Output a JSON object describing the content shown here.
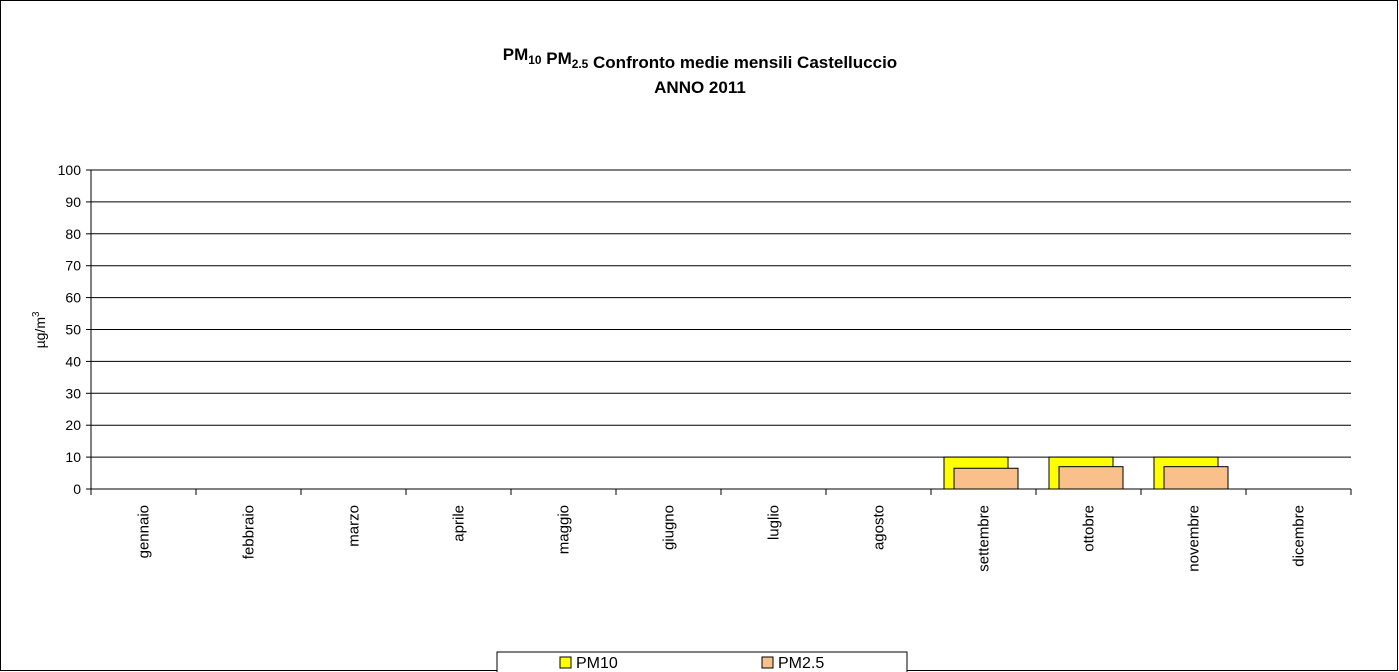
{
  "chart_data": {
    "type": "bar",
    "title": "PM10 PM2.5 Confronto medie mensili Castelluccio",
    "subtitle": "ANNO 2011",
    "y_label": "µg/m3",
    "categories": [
      "gennaio",
      "febbraio",
      "marzo",
      "aprile",
      "maggio",
      "giugno",
      "luglio",
      "agosto",
      "settembre",
      "ottobre",
      "novembre",
      "dicembre"
    ],
    "series": [
      {
        "name": "PM10",
        "color": "#ffff00",
        "values": [
          null,
          null,
          null,
          null,
          null,
          null,
          null,
          null,
          10,
          10,
          10,
          null
        ]
      },
      {
        "name": "PM2.5",
        "color": "#f9c08c",
        "values": [
          null,
          null,
          null,
          null,
          null,
          null,
          null,
          null,
          6.5,
          7,
          7,
          null
        ]
      }
    ],
    "ylim": [
      0,
      100
    ],
    "yticks": [
      0,
      10,
      20,
      30,
      40,
      50,
      60,
      70,
      80,
      90,
      100
    ],
    "grid": true,
    "legend": "bottom"
  }
}
